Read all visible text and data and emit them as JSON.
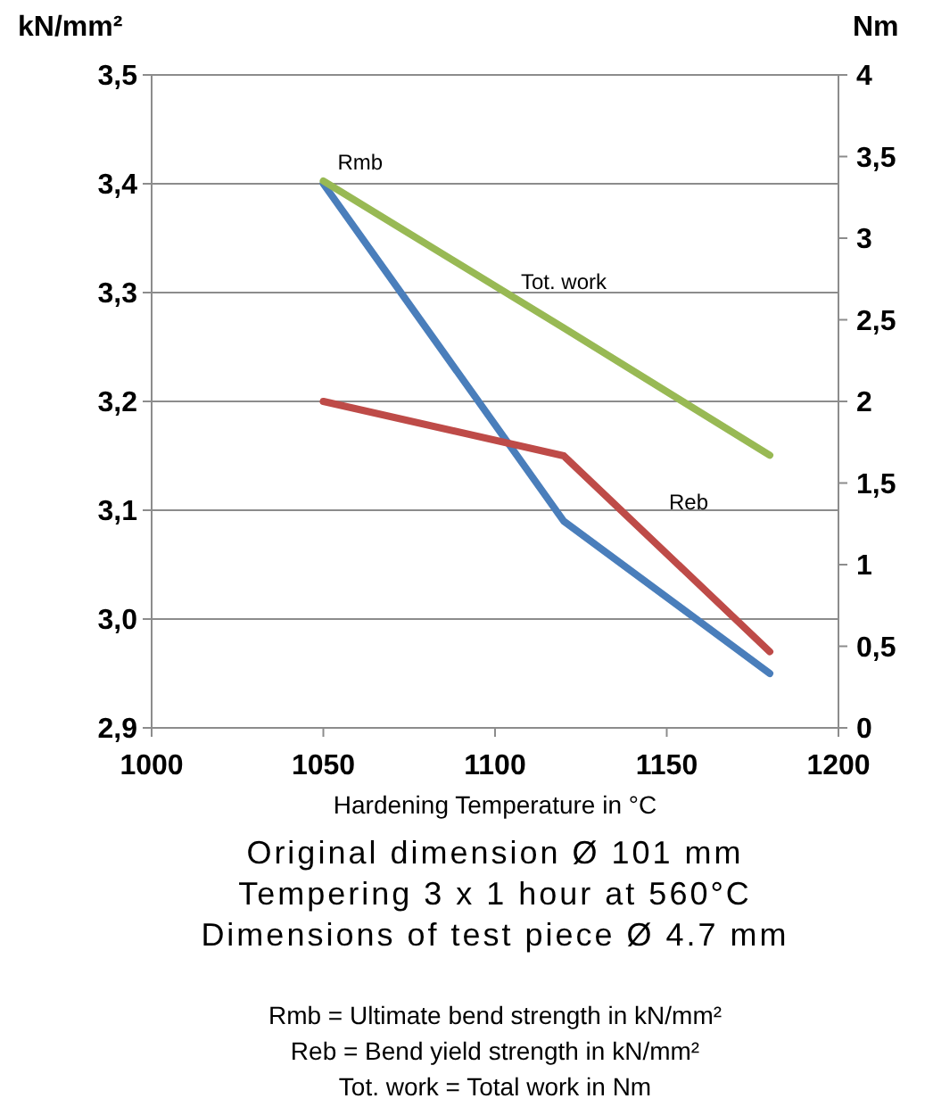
{
  "chart_data": {
    "type": "line",
    "ylabel": "kN/mm²",
    "y2label": "Nm",
    "xlabel": "Hardening Temperature in °C",
    "x": [
      1050,
      1120,
      1180
    ],
    "series": [
      {
        "name": "Rmb",
        "color": "#4a7ebb",
        "values": [
          3.4,
          3.09,
          2.95
        ]
      },
      {
        "name": "Reb",
        "color": "#be4b48",
        "values": [
          3.2,
          3.15,
          2.97
        ]
      },
      {
        "name": "Tot. work",
        "color": "#98b954",
        "values": [
          3.35,
          2.45,
          1.67
        ],
        "axis": "y2"
      }
    ],
    "xlim": [
      1000,
      1200
    ],
    "xticks": [
      1000,
      1050,
      1100,
      1150,
      1200
    ],
    "ylim": [
      2.9,
      3.5
    ],
    "yticks": [
      {
        "value": 2.9,
        "label": "2,9"
      },
      {
        "value": 3.0,
        "label": "3,0"
      },
      {
        "value": 3.1,
        "label": "3,1"
      },
      {
        "value": 3.2,
        "label": "3,2"
      },
      {
        "value": 3.3,
        "label": "3,3"
      },
      {
        "value": 3.4,
        "label": "3,4"
      },
      {
        "value": 3.5,
        "label": "3,5"
      }
    ],
    "y2lim": [
      0,
      4
    ],
    "y2ticks": [
      0,
      {
        "value": 0.5,
        "label": "0,5"
      },
      1,
      {
        "value": 1.5,
        "label": "1,5"
      },
      2,
      {
        "value": 2.5,
        "label": "2,5"
      },
      3,
      {
        "value": 3.5,
        "label": "3,5"
      },
      4
    ],
    "grid": "y",
    "legend": false,
    "marker": "none",
    "line_style": "solid",
    "annotations": [
      "Original dimension Ø 101 mm",
      "Tempering 3 x 1 hour at 560°C",
      "Dimensions of test piece Ø 4.7 mm",
      "Rmb = Ultimate bend strength in kN/mm²",
      "Reb =   Bend yield strength in kN/mm²",
      "Tot. work = Total work in Nm"
    ]
  }
}
